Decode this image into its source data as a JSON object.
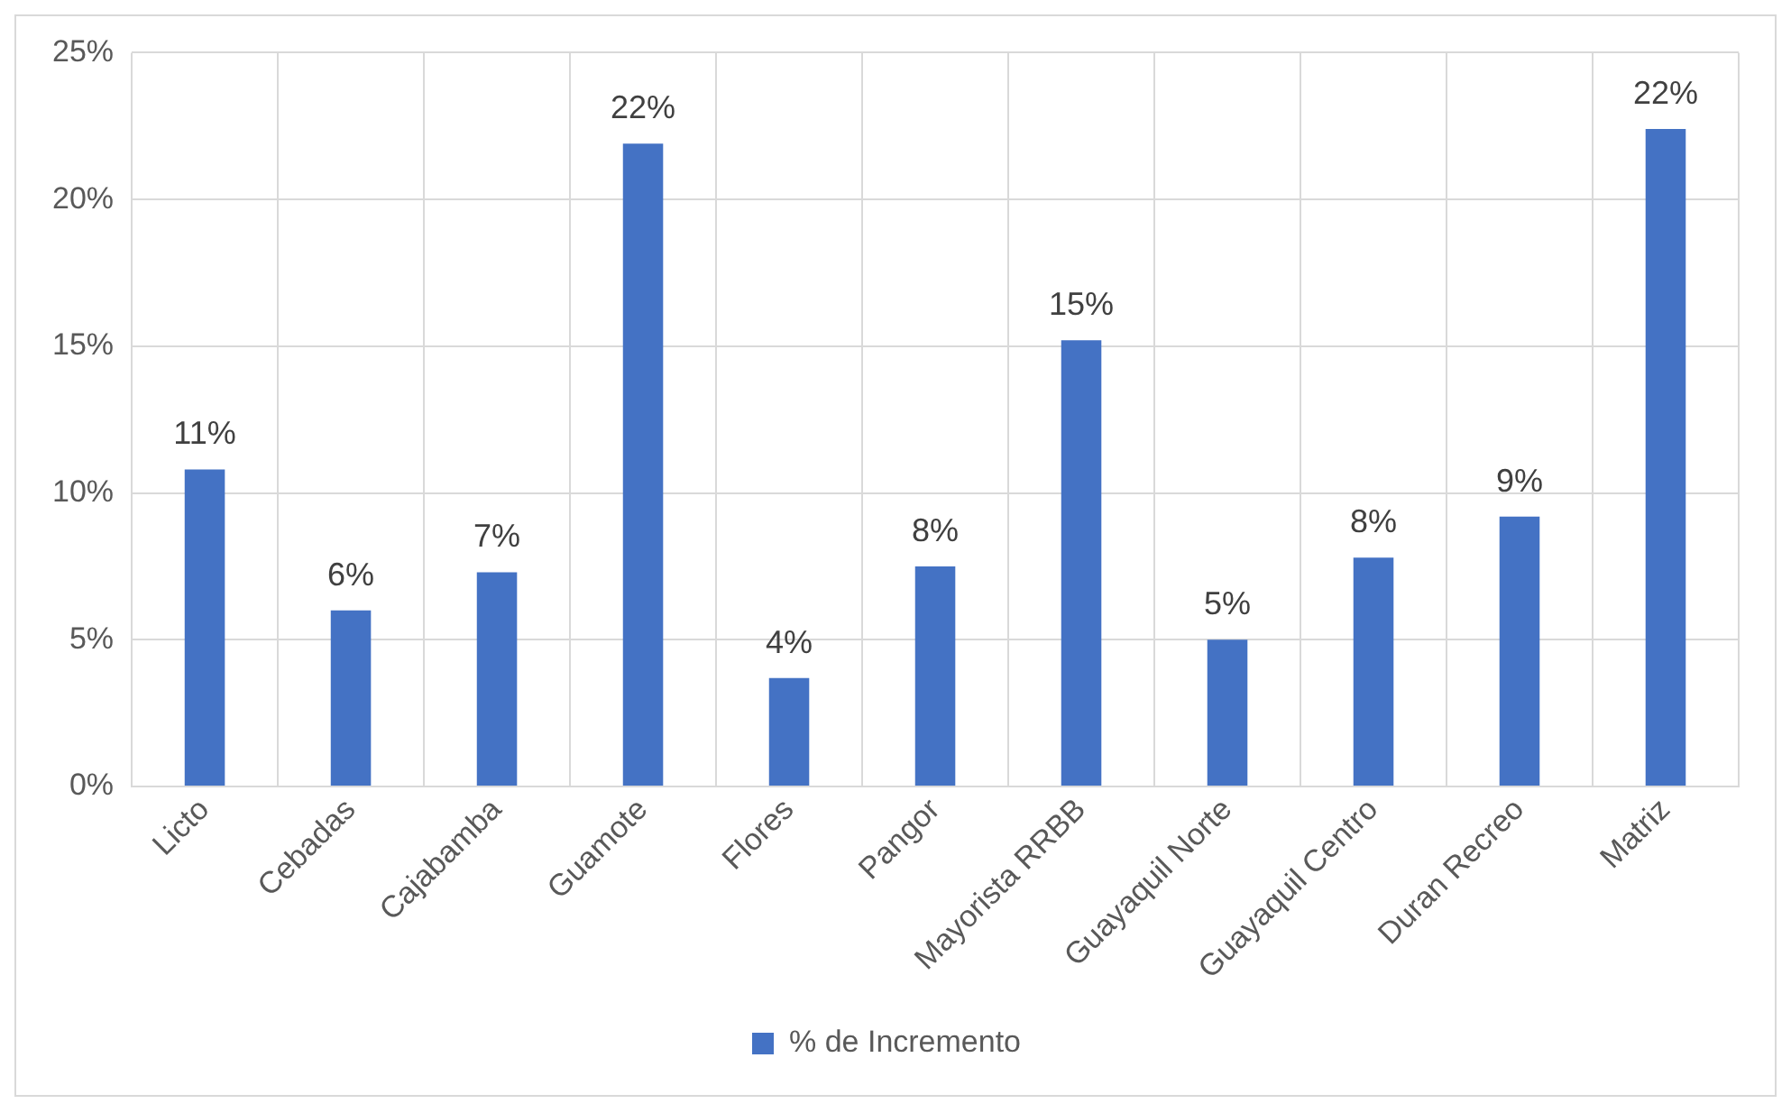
{
  "chart_data": {
    "type": "bar",
    "categories": [
      "Licto",
      "Cebadas",
      "Cajabamba",
      "Guamote",
      "Flores",
      "Pangor",
      "Mayorista RRBB",
      "Guayaquil Norte",
      "Guayaquil Centro",
      "Duran Recreo",
      "Matriz"
    ],
    "series": [
      {
        "name": "% de Incremento",
        "color": "#4472c4",
        "values": [
          10.8,
          6.0,
          7.3,
          21.9,
          3.7,
          7.5,
          15.2,
          5.0,
          7.8,
          9.2,
          22.4
        ],
        "value_labels": [
          "11%",
          "6%",
          "7%",
          "22%",
          "4%",
          "8%",
          "15%",
          "5%",
          "8%",
          "9%",
          "22%"
        ]
      }
    ],
    "ylim": [
      0,
      25
    ],
    "yticks": [
      {
        "value": 0,
        "label": "0%"
      },
      {
        "value": 5,
        "label": "5%"
      },
      {
        "value": 10,
        "label": "10%"
      },
      {
        "value": 15,
        "label": "15%"
      },
      {
        "value": 20,
        "label": "20%"
      },
      {
        "value": 25,
        "label": "25%"
      }
    ],
    "grid": true,
    "legend": "bottom"
  }
}
